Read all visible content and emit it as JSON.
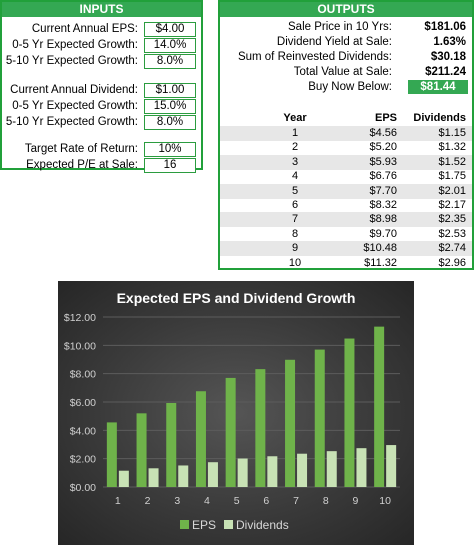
{
  "inputs": {
    "header": "INPUTS",
    "rows": [
      {
        "label": "Current Annual EPS:",
        "value": "$4.00"
      },
      {
        "label": "0-5 Yr Expected Growth:",
        "value": "14.0%"
      },
      {
        "label": "5-10 Yr Expected Growth:",
        "value": "8.0%"
      },
      {
        "label": "Current Annual Dividend:",
        "value": "$1.00"
      },
      {
        "label": "0-5 Yr Expected Growth:",
        "value": "15.0%"
      },
      {
        "label": "5-10 Yr Expected Growth:",
        "value": "8.0%"
      },
      {
        "label": "Target Rate of Return:",
        "value": "10%"
      },
      {
        "label": "Expected P/E at Sale:",
        "value": "16"
      }
    ]
  },
  "outputs": {
    "header": "OUTPUTS",
    "rows": [
      {
        "label": "Sale Price in 10 Yrs:",
        "value": "$181.06"
      },
      {
        "label": "Dividend Yield at Sale:",
        "value": "1.63%"
      },
      {
        "label": "Sum of Reinvested Dividends:",
        "value": "$30.18"
      },
      {
        "label": "Total Value at Sale:",
        "value": "$211.24"
      }
    ],
    "buy": {
      "label": "Buy Now Below:",
      "value": "$81.44"
    },
    "table": {
      "headers": {
        "year": "Year",
        "eps": "EPS",
        "div": "Dividends"
      },
      "rows": [
        {
          "year": "1",
          "eps": "$4.56",
          "div": "$1.15"
        },
        {
          "year": "2",
          "eps": "$5.20",
          "div": "$1.32"
        },
        {
          "year": "3",
          "eps": "$5.93",
          "div": "$1.52"
        },
        {
          "year": "4",
          "eps": "$6.76",
          "div": "$1.75"
        },
        {
          "year": "5",
          "eps": "$7.70",
          "div": "$2.01"
        },
        {
          "year": "6",
          "eps": "$8.32",
          "div": "$2.17"
        },
        {
          "year": "7",
          "eps": "$8.98",
          "div": "$2.35"
        },
        {
          "year": "8",
          "eps": "$9.70",
          "div": "$2.53"
        },
        {
          "year": "9",
          "eps": "$10.48",
          "div": "$2.74"
        },
        {
          "year": "10",
          "eps": "$11.32",
          "div": "$2.96"
        }
      ]
    }
  },
  "colors": {
    "panel_green": "#34a853",
    "eps_bar": "#6fb34a",
    "div_bar": "#c8e2b5"
  },
  "chart_data": {
    "type": "bar",
    "title": "Expected EPS and Dividend Growth",
    "categories": [
      "1",
      "2",
      "3",
      "4",
      "5",
      "6",
      "7",
      "8",
      "9",
      "10"
    ],
    "series": [
      {
        "name": "EPS",
        "values": [
          4.56,
          5.2,
          5.93,
          6.76,
          7.7,
          8.32,
          8.98,
          9.7,
          10.48,
          11.32
        ]
      },
      {
        "name": "Dividends",
        "values": [
          1.15,
          1.32,
          1.52,
          1.75,
          2.01,
          2.17,
          2.35,
          2.53,
          2.74,
          2.96
        ]
      }
    ],
    "yticks": [
      "$0.00",
      "$2.00",
      "$4.00",
      "$6.00",
      "$8.00",
      "$10.00",
      "$12.00"
    ],
    "ylim": [
      0,
      12
    ],
    "grid": true,
    "legend": "bottom"
  }
}
